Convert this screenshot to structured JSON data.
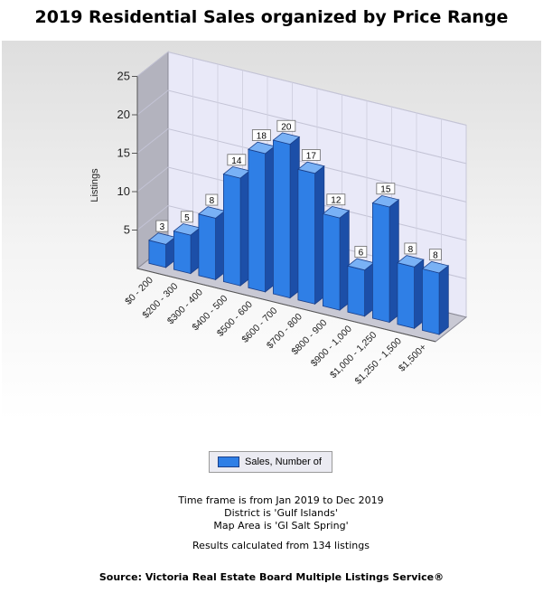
{
  "title": "2019 Residential Sales organized by Price Range",
  "chart_data": {
    "type": "bar",
    "title": "2019 Residential Sales organized by Price Range",
    "ylabel": "Listings",
    "xlabel": "",
    "ylim": [
      0,
      25
    ],
    "yticks": [
      5,
      10,
      15,
      20,
      25
    ],
    "categories": [
      "$0 - 200",
      "$200 - 300",
      "$300 - 400",
      "$400 - 500",
      "$500 - 600",
      "$600 - 700",
      "$700 - 800",
      "$800 - 900",
      "$900 - 1,000",
      "$1,000 - 1,250",
      "$1,250 - 1,500",
      "$1,500+"
    ],
    "series": [
      {
        "name": "Sales, Number of",
        "values": [
          3,
          5,
          8,
          14,
          18,
          20,
          17,
          12,
          6,
          15,
          8,
          8
        ]
      }
    ],
    "grid": true,
    "legend": "bottom",
    "bar_color": "#2f7fe6"
  },
  "legend": {
    "label": "Sales, Number of"
  },
  "info": {
    "timeframe": "Time frame is from Jan 2019 to Dec 2019",
    "district": "District is 'Gulf Islands'",
    "map_area": "Map Area is 'GI Salt Spring'",
    "results": "Results calculated from 134 listings"
  },
  "footer": "Source: Victoria Real Estate Board Multiple Listings Service®"
}
